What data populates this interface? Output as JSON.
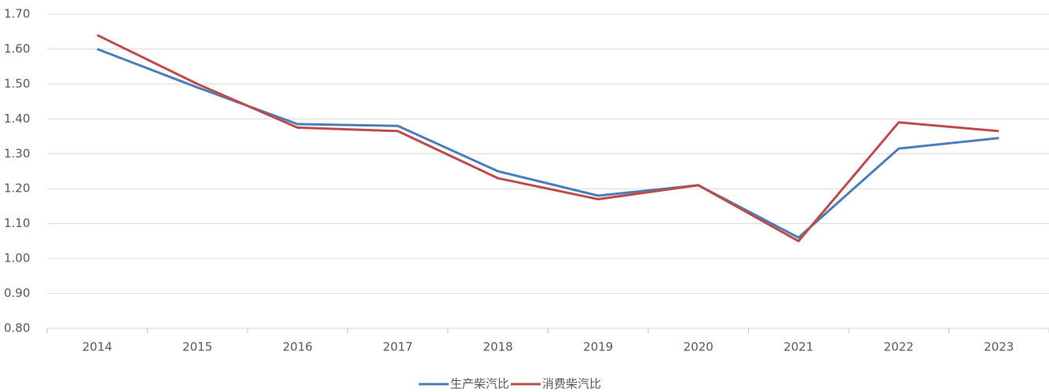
{
  "chart_data": {
    "type": "line",
    "categories": [
      "2014",
      "2015",
      "2016",
      "2017",
      "2018",
      "2019",
      "2020",
      "2021",
      "2022",
      "2023"
    ],
    "series": [
      {
        "name": "生产柴汽比",
        "color": "#4a7ebb",
        "values": [
          1.6,
          1.49,
          1.385,
          1.38,
          1.25,
          1.18,
          1.21,
          1.06,
          1.315,
          1.345
        ]
      },
      {
        "name": "消费柴汽比",
        "color": "#be4b48",
        "values": [
          1.64,
          1.5,
          1.375,
          1.365,
          1.23,
          1.17,
          1.21,
          1.05,
          1.39,
          1.365
        ]
      }
    ],
    "ylim": [
      0.8,
      1.7
    ],
    "yticks": [
      {
        "value": 0.8,
        "label": "0.80"
      },
      {
        "value": 0.9,
        "label": "0.90"
      },
      {
        "value": 1.0,
        "label": "1.00"
      },
      {
        "value": 1.1,
        "label": "1.10"
      },
      {
        "value": 1.2,
        "label": "1.20"
      },
      {
        "value": 1.3,
        "label": "1.30"
      },
      {
        "value": 1.4,
        "label": "1.40"
      },
      {
        "value": 1.5,
        "label": "1.50"
      },
      {
        "value": 1.6,
        "label": "1.60"
      },
      {
        "value": 1.7,
        "label": "1.70"
      }
    ],
    "grid": true,
    "legend": "bottom"
  }
}
